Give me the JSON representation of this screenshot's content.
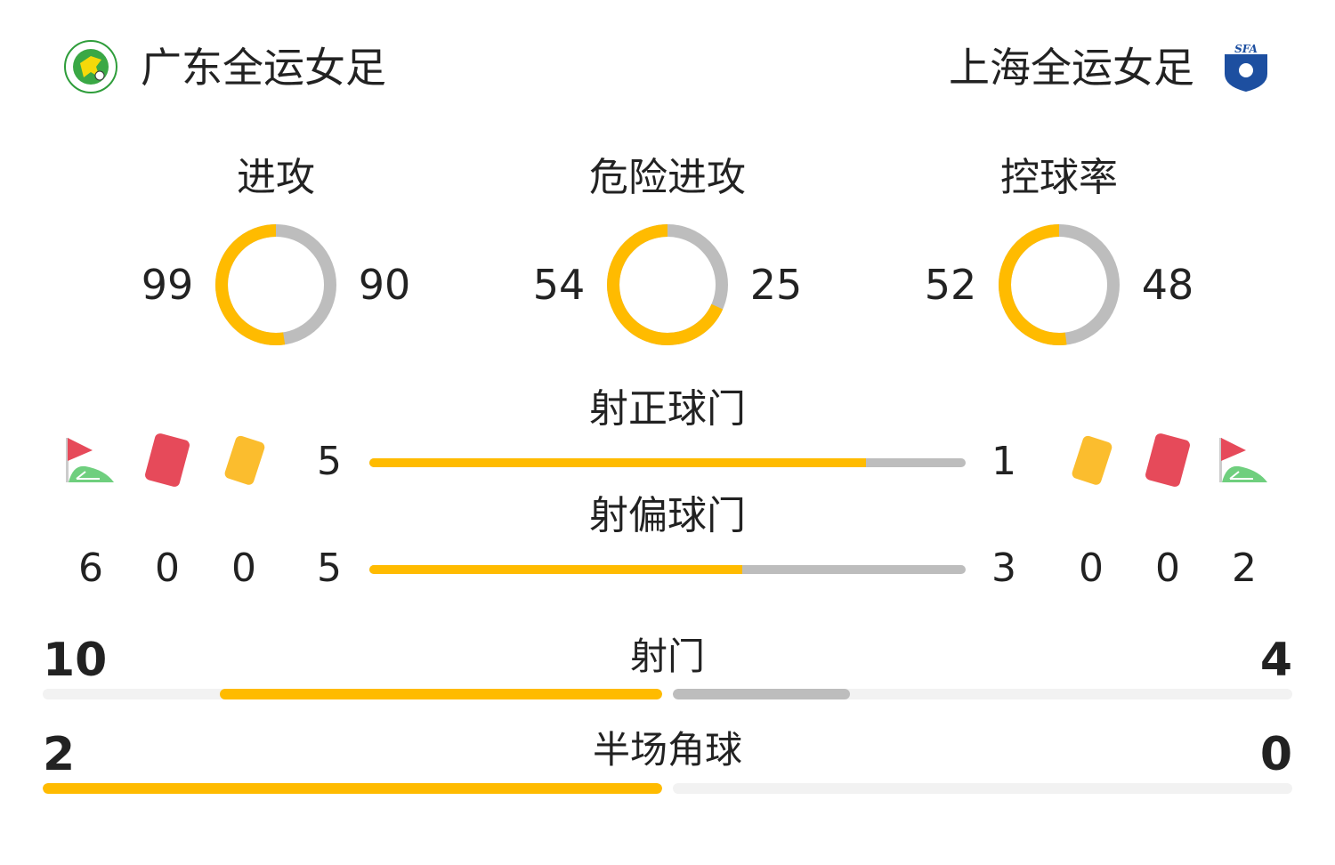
{
  "home": {
    "name": "广东全运女足",
    "logo": "guangdong-logo"
  },
  "away": {
    "name": "上海全运女足",
    "logo": "shanghai-sfa-logo",
    "logo_text": "SFA"
  },
  "colors": {
    "home": "#FFBB00",
    "away": "#BDBDBD",
    "track": "#F2F2F2"
  },
  "donuts": [
    {
      "label": "进攻",
      "home": 99,
      "away": 90
    },
    {
      "label": "危险进攻",
      "home": 54,
      "away": 25
    },
    {
      "label": "控球率",
      "home": 52,
      "away": 48
    }
  ],
  "bars": [
    {
      "label": "射正球门",
      "home": 5,
      "away": 1
    },
    {
      "label": "射偏球门",
      "home": 5,
      "away": 3
    }
  ],
  "counts": {
    "icons": [
      "corner-flag-icon",
      "red-card-icon",
      "yellow-card-icon"
    ],
    "home": {
      "corners": 6,
      "red": 0,
      "yellow": 0
    },
    "away": {
      "corners": 2,
      "red": 0,
      "yellow": 0
    }
  },
  "wide_bars": [
    {
      "label": "射门",
      "home": 10,
      "away": 4
    },
    {
      "label": "半场角球",
      "home": 2,
      "away": 0
    }
  ]
}
